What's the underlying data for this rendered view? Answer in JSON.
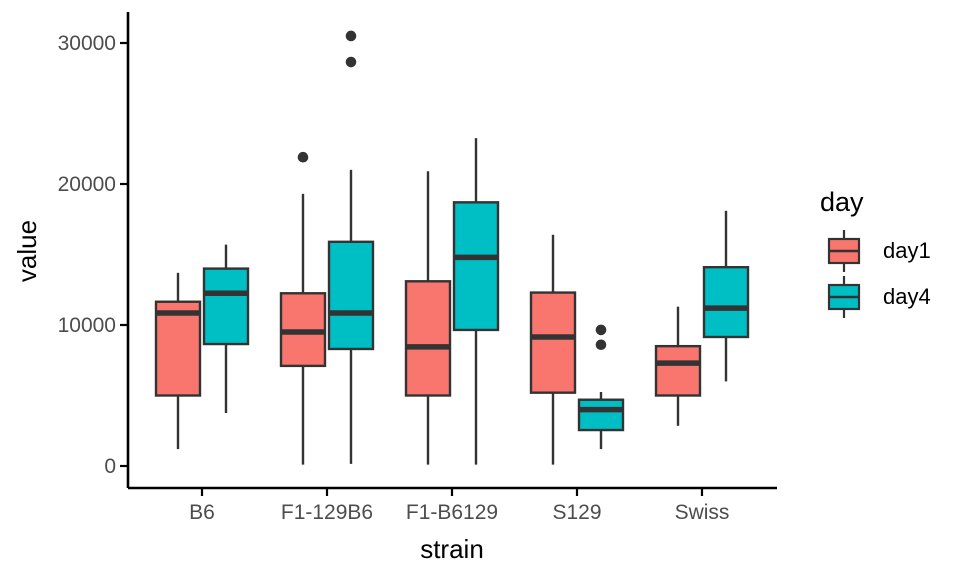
{
  "chart_data": {
    "type": "boxplot",
    "title": "",
    "xlabel": "strain",
    "ylabel": "value",
    "categories": [
      "B6",
      "F1-129B6",
      "F1-B6129",
      "S129",
      "Swiss"
    ],
    "y_ticks": [
      0,
      10000,
      20000,
      30000
    ],
    "y_tick_labels": [
      "0",
      "10000",
      "20000",
      "30000"
    ],
    "ylim": [
      0,
      31000
    ],
    "grid": false,
    "legend": {
      "title": "day",
      "position": "right",
      "entries": [
        {
          "label": "day1",
          "color": "#F8766D"
        },
        {
          "label": "day4",
          "color": "#00BFC4"
        }
      ]
    },
    "series": [
      {
        "name": "day1",
        "color": "#F8766D",
        "boxes": [
          {
            "category": "B6",
            "whisker_low": 1200,
            "q1": 5000,
            "median": 10850,
            "q3": 11650,
            "whisker_high": 13700,
            "outliers": []
          },
          {
            "category": "F1-129B6",
            "whisker_low": 100,
            "q1": 7100,
            "median": 9500,
            "q3": 12250,
            "whisker_high": 19300,
            "outliers": [
              21900
            ]
          },
          {
            "category": "F1-B6129",
            "whisker_low": 100,
            "q1": 5000,
            "median": 8450,
            "q3": 13100,
            "whisker_high": 20900,
            "outliers": []
          },
          {
            "category": "S129",
            "whisker_low": 100,
            "q1": 5200,
            "median": 9150,
            "q3": 12300,
            "whisker_high": 16400,
            "outliers": []
          },
          {
            "category": "Swiss",
            "whisker_low": 2850,
            "q1": 5000,
            "median": 7300,
            "q3": 8500,
            "whisker_high": 11300,
            "outliers": []
          }
        ]
      },
      {
        "name": "day4",
        "color": "#00BFC4",
        "boxes": [
          {
            "category": "B6",
            "whisker_low": 3760,
            "q1": 8650,
            "median": 12250,
            "q3": 14000,
            "whisker_high": 15700,
            "outliers": []
          },
          {
            "category": "F1-129B6",
            "whisker_low": 150,
            "q1": 8300,
            "median": 10850,
            "q3": 15900,
            "whisker_high": 21000,
            "outliers": [
              28650,
              30500
            ]
          },
          {
            "category": "F1-B6129",
            "whisker_low": 100,
            "q1": 9650,
            "median": 14800,
            "q3": 18700,
            "whisker_high": 23250,
            "outliers": []
          },
          {
            "category": "S129",
            "whisker_low": 1200,
            "q1": 2550,
            "median": 4000,
            "q3": 4700,
            "whisker_high": 5250,
            "outliers": [
              8600,
              9650
            ]
          },
          {
            "category": "Swiss",
            "whisker_low": 6000,
            "q1": 9150,
            "median": 11200,
            "q3": 14100,
            "whisker_high": 18100,
            "outliers": []
          }
        ]
      }
    ],
    "colors": {
      "box_border": "#333333",
      "whisker": "#333333",
      "outlier": "#333333",
      "axis_line": "#000000",
      "tick_label": "#4D4D4D",
      "title_text": "#000000",
      "background": "#ffffff"
    }
  }
}
